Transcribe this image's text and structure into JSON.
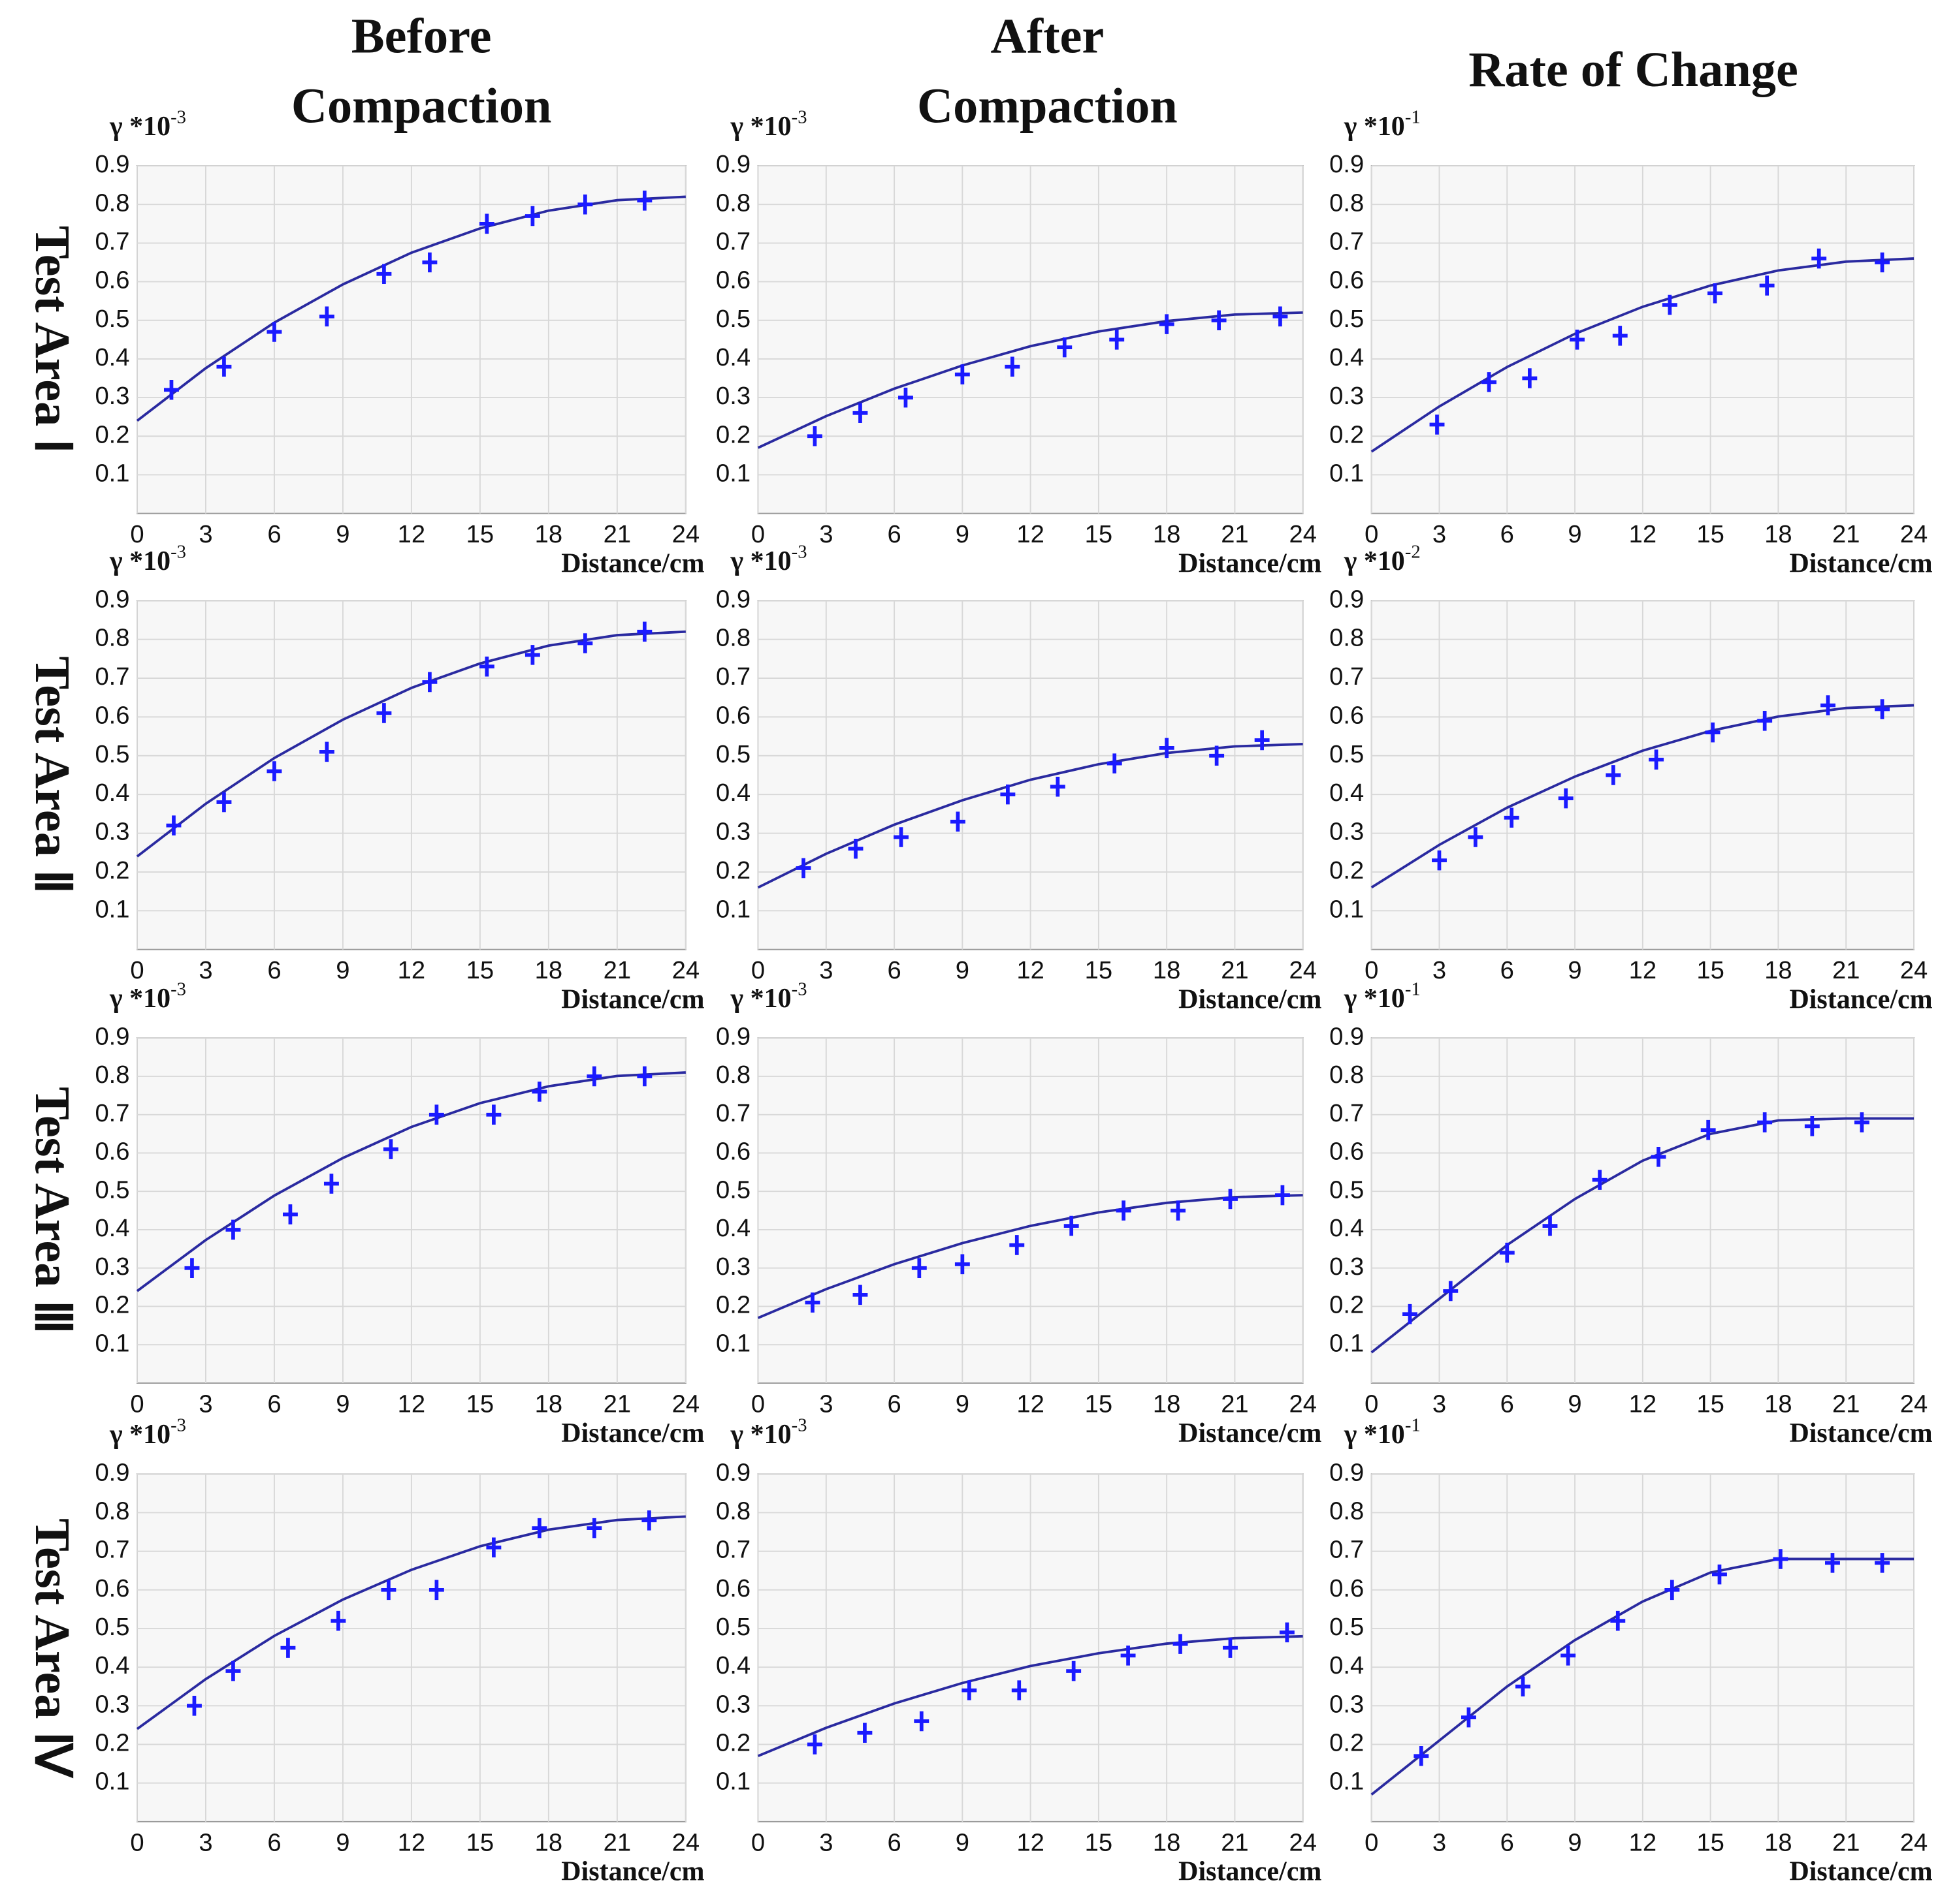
{
  "columns": [
    [
      "Before",
      "Compaction"
    ],
    [
      "After",
      "Compaction"
    ],
    [
      "Rate of Change"
    ]
  ],
  "rows": [
    "Test Area Ⅰ",
    "Test Area Ⅱ",
    "Test Area Ⅲ",
    "Test Area Ⅳ"
  ],
  "chart_data": [
    {
      "type": "scatter",
      "y_unit": {
        "base": "γ *10",
        "exp": "-3"
      },
      "xlabel": "Distance/cm",
      "xlim": [
        0,
        24
      ],
      "xticks": [
        0,
        3,
        6,
        9,
        12,
        15,
        18,
        21,
        24
      ],
      "ylim": [
        0,
        0.9
      ],
      "yticks": [
        0.1,
        0.2,
        0.3,
        0.4,
        0.5,
        0.6,
        0.7,
        0.8,
        0.9
      ],
      "grid": true,
      "point_color": "#1a1aff",
      "line_color": "#2a2aa0",
      "points": {
        "x": [
          1.5,
          3.8,
          6,
          8.3,
          10.8,
          12.8,
          15.3,
          17.3,
          19.6,
          22.2
        ],
        "values": [
          0.32,
          0.38,
          0.47,
          0.51,
          0.62,
          0.65,
          0.75,
          0.77,
          0.8,
          0.81
        ]
      },
      "fit": {
        "x": [
          0,
          3,
          6,
          9,
          12,
          15,
          18,
          21,
          24
        ],
        "values": [
          0.24,
          0.376,
          0.494,
          0.593,
          0.675,
          0.738,
          0.784,
          0.811,
          0.82
        ]
      }
    },
    {
      "type": "scatter",
      "y_unit": {
        "base": "γ *10",
        "exp": "-3"
      },
      "xlabel": "Distance/cm",
      "xlim": [
        0,
        24
      ],
      "xticks": [
        0,
        3,
        6,
        9,
        12,
        15,
        18,
        21,
        24
      ],
      "ylim": [
        0,
        0.9
      ],
      "yticks": [
        0.1,
        0.2,
        0.3,
        0.4,
        0.5,
        0.6,
        0.7,
        0.8,
        0.9
      ],
      "grid": true,
      "point_color": "#1a1aff",
      "line_color": "#2a2aa0",
      "points": {
        "x": [
          2.5,
          4.5,
          6.5,
          9,
          11.2,
          13.5,
          15.8,
          18,
          20.3,
          23
        ],
        "values": [
          0.2,
          0.26,
          0.3,
          0.36,
          0.38,
          0.43,
          0.45,
          0.49,
          0.5,
          0.51
        ]
      },
      "fit": {
        "x": [
          0,
          3,
          6,
          9,
          12,
          15,
          18,
          21,
          24
        ],
        "values": [
          0.17,
          0.252,
          0.323,
          0.383,
          0.433,
          0.471,
          0.498,
          0.515,
          0.52
        ]
      }
    },
    {
      "type": "scatter",
      "y_unit": {
        "base": "γ *10",
        "exp": "-1"
      },
      "xlabel": "Distance/cm",
      "xlim": [
        0,
        24
      ],
      "xticks": [
        0,
        3,
        6,
        9,
        12,
        15,
        18,
        21,
        24
      ],
      "ylim": [
        0,
        0.9
      ],
      "yticks": [
        0.1,
        0.2,
        0.3,
        0.4,
        0.5,
        0.6,
        0.7,
        0.8,
        0.9
      ],
      "grid": true,
      "point_color": "#1a1aff",
      "line_color": "#2a2aa0",
      "points": {
        "x": [
          2.9,
          5.2,
          7,
          9.1,
          11,
          13.2,
          15.2,
          17.5,
          19.8,
          22.6
        ],
        "values": [
          0.23,
          0.34,
          0.35,
          0.45,
          0.46,
          0.54,
          0.57,
          0.59,
          0.66,
          0.65
        ]
      },
      "fit": {
        "x": [
          0,
          3,
          6,
          9,
          12,
          15,
          18,
          21,
          24
        ],
        "values": [
          0.16,
          0.277,
          0.379,
          0.465,
          0.535,
          0.59,
          0.629,
          0.652,
          0.66
        ]
      }
    },
    {
      "type": "scatter",
      "y_unit": {
        "base": "γ *10",
        "exp": "-3"
      },
      "xlabel": "Distance/cm",
      "xlim": [
        0,
        24
      ],
      "xticks": [
        0,
        3,
        6,
        9,
        12,
        15,
        18,
        21,
        24
      ],
      "ylim": [
        0,
        0.9
      ],
      "yticks": [
        0.1,
        0.2,
        0.3,
        0.4,
        0.5,
        0.6,
        0.7,
        0.8,
        0.9
      ],
      "grid": true,
      "point_color": "#1a1aff",
      "line_color": "#2a2aa0",
      "points": {
        "x": [
          1.6,
          3.8,
          6,
          8.3,
          10.8,
          12.8,
          15.3,
          17.3,
          19.6,
          22.2
        ],
        "values": [
          0.32,
          0.38,
          0.46,
          0.51,
          0.61,
          0.69,
          0.73,
          0.76,
          0.79,
          0.82
        ]
      },
      "fit": {
        "x": [
          0,
          3,
          6,
          9,
          12,
          15,
          18,
          21,
          24
        ],
        "values": [
          0.24,
          0.376,
          0.494,
          0.593,
          0.675,
          0.738,
          0.784,
          0.811,
          0.82
        ]
      }
    },
    {
      "type": "scatter",
      "y_unit": {
        "base": "γ *10",
        "exp": "-3"
      },
      "xlabel": "Distance/cm",
      "xlim": [
        0,
        24
      ],
      "xticks": [
        0,
        3,
        6,
        9,
        12,
        15,
        18,
        21,
        24
      ],
      "ylim": [
        0,
        0.9
      ],
      "yticks": [
        0.1,
        0.2,
        0.3,
        0.4,
        0.5,
        0.6,
        0.7,
        0.8,
        0.9
      ],
      "grid": true,
      "point_color": "#1a1aff",
      "line_color": "#2a2aa0",
      "points": {
        "x": [
          2,
          4.3,
          6.3,
          8.8,
          11,
          13.2,
          15.7,
          18,
          20.2,
          22.2
        ],
        "values": [
          0.21,
          0.26,
          0.29,
          0.33,
          0.4,
          0.42,
          0.48,
          0.52,
          0.5,
          0.54
        ]
      },
      "fit": {
        "x": [
          0,
          3,
          6,
          9,
          12,
          15,
          18,
          21,
          24
        ],
        "values": [
          0.16,
          0.247,
          0.322,
          0.385,
          0.438,
          0.478,
          0.507,
          0.524,
          0.53
        ]
      }
    },
    {
      "type": "scatter",
      "y_unit": {
        "base": "γ *10",
        "exp": "-2"
      },
      "xlabel": "Distance/cm",
      "xlim": [
        0,
        24
      ],
      "xticks": [
        0,
        3,
        6,
        9,
        12,
        15,
        18,
        21,
        24
      ],
      "ylim": [
        0,
        0.9
      ],
      "yticks": [
        0.1,
        0.2,
        0.3,
        0.4,
        0.5,
        0.6,
        0.7,
        0.8,
        0.9
      ],
      "grid": true,
      "point_color": "#1a1aff",
      "line_color": "#2a2aa0",
      "points": {
        "x": [
          3,
          4.6,
          6.2,
          8.6,
          10.7,
          12.6,
          15.1,
          17.4,
          20.2,
          22.6
        ],
        "values": [
          0.23,
          0.29,
          0.34,
          0.39,
          0.45,
          0.49,
          0.56,
          0.59,
          0.63,
          0.62
        ]
      },
      "fit": {
        "x": [
          0,
          3,
          6,
          9,
          12,
          15,
          18,
          21,
          24
        ],
        "values": [
          0.16,
          0.27,
          0.366,
          0.446,
          0.513,
          0.564,
          0.601,
          0.623,
          0.63
        ]
      }
    },
    {
      "type": "scatter",
      "y_unit": {
        "base": "γ *10",
        "exp": "-3"
      },
      "xlabel": "Distance/cm",
      "xlim": [
        0,
        24
      ],
      "xticks": [
        0,
        3,
        6,
        9,
        12,
        15,
        18,
        21,
        24
      ],
      "ylim": [
        0,
        0.9
      ],
      "yticks": [
        0.1,
        0.2,
        0.3,
        0.4,
        0.5,
        0.6,
        0.7,
        0.8,
        0.9
      ],
      "grid": true,
      "point_color": "#1a1aff",
      "line_color": "#2a2aa0",
      "points": {
        "x": [
          2.4,
          4.2,
          6.7,
          8.5,
          11.1,
          13.1,
          15.6,
          17.6,
          20,
          22.2
        ],
        "values": [
          0.3,
          0.4,
          0.44,
          0.52,
          0.61,
          0.7,
          0.7,
          0.76,
          0.8,
          0.8
        ]
      },
      "fit": {
        "x": [
          0,
          3,
          6,
          9,
          12,
          15,
          18,
          21,
          24
        ],
        "values": [
          0.24,
          0.373,
          0.489,
          0.587,
          0.668,
          0.73,
          0.774,
          0.801,
          0.81
        ]
      }
    },
    {
      "type": "scatter",
      "y_unit": {
        "base": "γ *10",
        "exp": "-3"
      },
      "xlabel": "Distance/cm",
      "xlim": [
        0,
        24
      ],
      "xticks": [
        0,
        3,
        6,
        9,
        12,
        15,
        18,
        21,
        24
      ],
      "ylim": [
        0,
        0.9
      ],
      "yticks": [
        0.1,
        0.2,
        0.3,
        0.4,
        0.5,
        0.6,
        0.7,
        0.8,
        0.9
      ],
      "grid": true,
      "point_color": "#1a1aff",
      "line_color": "#2a2aa0",
      "points": {
        "x": [
          2.4,
          4.5,
          7.1,
          9,
          11.4,
          13.8,
          16.1,
          18.5,
          20.8,
          23.1
        ],
        "values": [
          0.21,
          0.23,
          0.3,
          0.31,
          0.36,
          0.41,
          0.45,
          0.45,
          0.48,
          0.49
        ]
      },
      "fit": {
        "x": [
          0,
          3,
          6,
          9,
          12,
          15,
          18,
          21,
          24
        ],
        "values": [
          0.17,
          0.245,
          0.31,
          0.365,
          0.41,
          0.445,
          0.47,
          0.485,
          0.49
        ]
      }
    },
    {
      "type": "scatter",
      "y_unit": {
        "base": "γ *10",
        "exp": "-1"
      },
      "xlabel": "Distance/cm",
      "xlim": [
        0,
        24
      ],
      "xticks": [
        0,
        3,
        6,
        9,
        12,
        15,
        18,
        21,
        24
      ],
      "ylim": [
        0,
        0.9
      ],
      "yticks": [
        0.1,
        0.2,
        0.3,
        0.4,
        0.5,
        0.6,
        0.7,
        0.8,
        0.9
      ],
      "grid": true,
      "point_color": "#1a1aff",
      "line_color": "#2a2aa0",
      "points": {
        "x": [
          1.7,
          3.5,
          6,
          7.9,
          10.1,
          12.7,
          14.9,
          17.4,
          19.5,
          21.7
        ],
        "values": [
          0.18,
          0.24,
          0.34,
          0.41,
          0.53,
          0.59,
          0.66,
          0.68,
          0.67,
          0.68
        ]
      },
      "fit": {
        "x": [
          0,
          3,
          6,
          9,
          12,
          15,
          18,
          21,
          24
        ],
        "values": [
          0.08,
          0.22,
          0.36,
          0.48,
          0.58,
          0.65,
          0.685,
          0.69,
          0.69
        ]
      }
    },
    {
      "type": "scatter",
      "y_unit": {
        "base": "γ *10",
        "exp": "-3"
      },
      "xlabel": "Distance/cm",
      "xlim": [
        0,
        24
      ],
      "xticks": [
        0,
        3,
        6,
        9,
        12,
        15,
        18,
        21,
        24
      ],
      "ylim": [
        0,
        0.9
      ],
      "yticks": [
        0.1,
        0.2,
        0.3,
        0.4,
        0.5,
        0.6,
        0.7,
        0.8,
        0.9
      ],
      "grid": true,
      "point_color": "#1a1aff",
      "line_color": "#2a2aa0",
      "points": {
        "x": [
          2.5,
          4.2,
          6.6,
          8.8,
          11,
          13.1,
          15.6,
          17.6,
          20,
          22.4
        ],
        "values": [
          0.3,
          0.39,
          0.45,
          0.52,
          0.6,
          0.6,
          0.71,
          0.76,
          0.76,
          0.78
        ]
      },
      "fit": {
        "x": [
          0,
          3,
          6,
          9,
          12,
          15,
          18,
          21,
          24
        ],
        "values": [
          0.24,
          0.369,
          0.481,
          0.575,
          0.652,
          0.713,
          0.756,
          0.781,
          0.79
        ]
      }
    },
    {
      "type": "scatter",
      "y_unit": {
        "base": "γ *10",
        "exp": "-3"
      },
      "xlabel": "Distance/cm",
      "xlim": [
        0,
        24
      ],
      "xticks": [
        0,
        3,
        6,
        9,
        12,
        15,
        18,
        21,
        24
      ],
      "ylim": [
        0,
        0.9
      ],
      "yticks": [
        0.1,
        0.2,
        0.3,
        0.4,
        0.5,
        0.6,
        0.7,
        0.8,
        0.9
      ],
      "grid": true,
      "point_color": "#1a1aff",
      "line_color": "#2a2aa0",
      "points": {
        "x": [
          2.5,
          4.7,
          7.2,
          9.3,
          11.5,
          13.9,
          16.3,
          18.6,
          20.8,
          23.3
        ],
        "values": [
          0.2,
          0.23,
          0.26,
          0.34,
          0.34,
          0.39,
          0.43,
          0.46,
          0.45,
          0.49
        ]
      },
      "fit": {
        "x": [
          0,
          3,
          6,
          9,
          12,
          15,
          18,
          21,
          24
        ],
        "values": [
          0.17,
          0.243,
          0.306,
          0.359,
          0.403,
          0.436,
          0.461,
          0.475,
          0.48
        ]
      }
    },
    {
      "type": "scatter",
      "y_unit": {
        "base": "γ *10",
        "exp": "-1"
      },
      "xlabel": "Distance/cm",
      "xlim": [
        0,
        24
      ],
      "xticks": [
        0,
        3,
        6,
        9,
        12,
        15,
        18,
        21,
        24
      ],
      "ylim": [
        0,
        0.9
      ],
      "yticks": [
        0.1,
        0.2,
        0.3,
        0.4,
        0.5,
        0.6,
        0.7,
        0.8,
        0.9
      ],
      "grid": true,
      "point_color": "#1a1aff",
      "line_color": "#2a2aa0",
      "points": {
        "x": [
          2.2,
          4.3,
          6.7,
          8.7,
          10.9,
          13.3,
          15.4,
          18.1,
          20.4,
          22.6
        ],
        "values": [
          0.17,
          0.27,
          0.35,
          0.43,
          0.52,
          0.6,
          0.64,
          0.68,
          0.67,
          0.67
        ]
      },
      "fit": {
        "x": [
          0,
          3,
          6,
          9,
          12,
          15,
          18,
          21,
          24
        ],
        "values": [
          0.07,
          0.21,
          0.35,
          0.47,
          0.57,
          0.645,
          0.68,
          0.68,
          0.68
        ]
      }
    }
  ]
}
